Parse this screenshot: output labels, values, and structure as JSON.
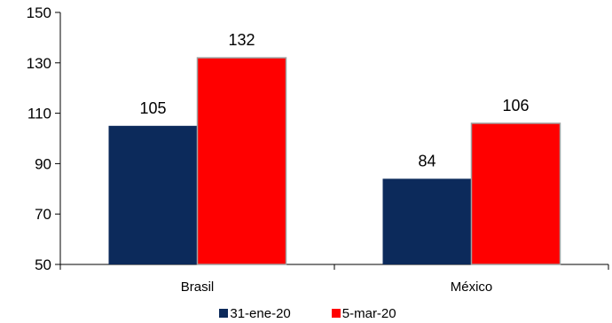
{
  "chart_data": {
    "type": "bar",
    "categories": [
      "Brasil",
      "México"
    ],
    "series": [
      {
        "name": "31-ene-20",
        "values": [
          105,
          84
        ],
        "color": "#0c2a5b"
      },
      {
        "name": "5-mar-20",
        "values": [
          132,
          106
        ],
        "color": "#ff0000"
      }
    ],
    "ylim": [
      50,
      150
    ],
    "yticks": [
      50,
      70,
      90,
      110,
      130,
      150
    ],
    "grid": false,
    "legend_position": "bottom",
    "title": "",
    "xlabel": "",
    "ylabel": ""
  }
}
